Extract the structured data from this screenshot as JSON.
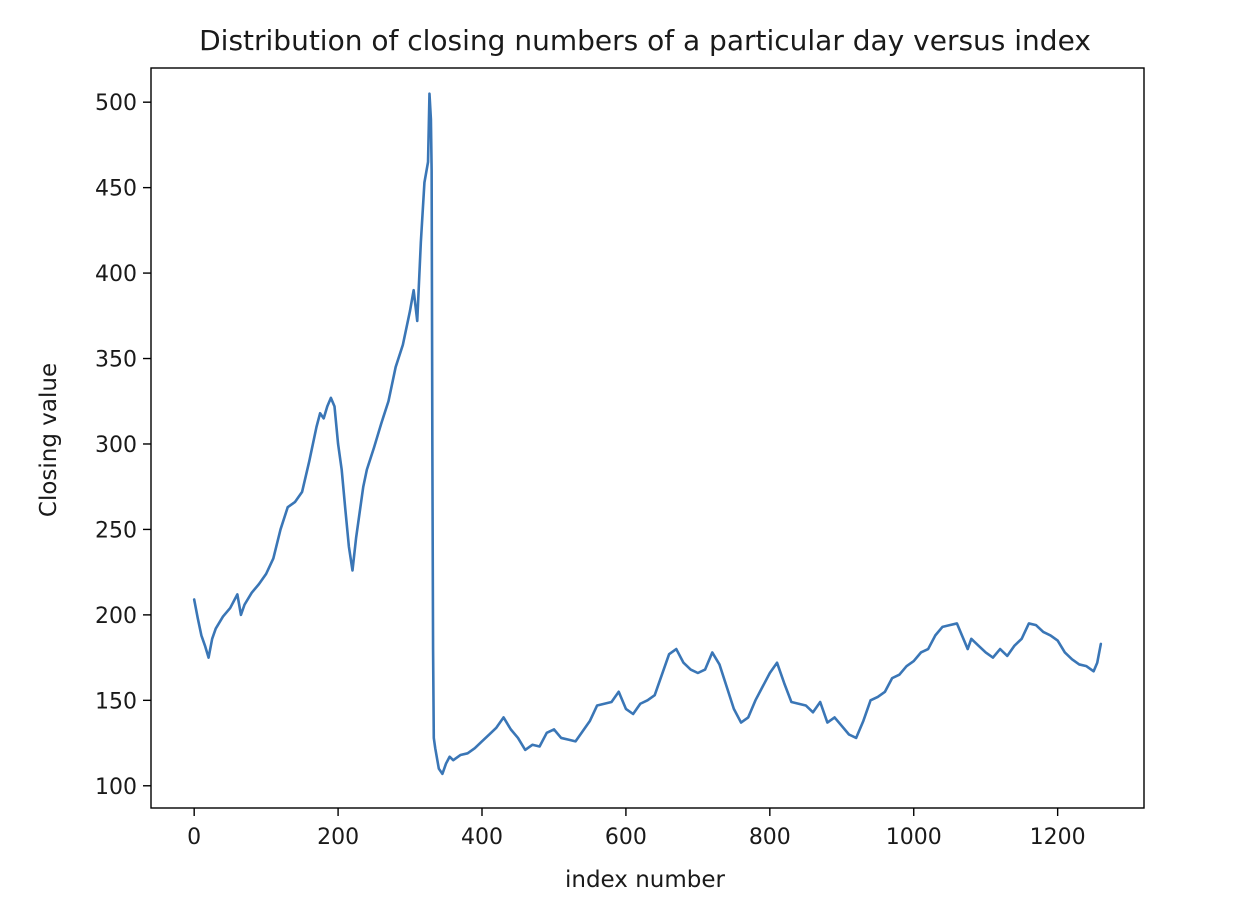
{
  "chart_data": {
    "type": "line",
    "title": "Distribution of closing numbers of a particular day versus index",
    "xlabel": "index number",
    "ylabel": "Closing value",
    "xlim": [
      -60,
      1320
    ],
    "ylim": [
      87,
      520
    ],
    "xticks": [
      0,
      200,
      400,
      600,
      800,
      1000,
      1200
    ],
    "yticks": [
      100,
      150,
      200,
      250,
      300,
      350,
      400,
      450,
      500
    ],
    "grid": false,
    "legend": "none",
    "series_color": "#3a76b6",
    "series": [
      {
        "x": [
          0,
          5,
          10,
          15,
          20,
          25,
          30,
          40,
          50,
          60,
          65,
          70,
          80,
          90,
          100,
          110,
          120,
          130,
          140,
          150,
          160,
          170,
          175,
          180,
          185,
          190,
          195,
          200,
          205,
          210,
          215,
          220,
          225,
          230,
          235,
          240,
          250,
          260,
          270,
          280,
          290,
          300,
          305,
          310,
          315,
          320,
          325,
          327,
          329,
          330,
          331,
          332,
          333,
          335,
          340,
          345,
          350,
          355,
          360,
          370,
          380,
          390,
          400,
          410,
          420,
          430,
          440,
          450,
          460,
          470,
          480,
          490,
          500,
          510,
          520,
          530,
          540,
          550,
          560,
          570,
          580,
          590,
          600,
          610,
          620,
          630,
          640,
          650,
          660,
          670,
          680,
          690,
          700,
          710,
          720,
          730,
          740,
          750,
          760,
          770,
          780,
          790,
          800,
          810,
          820,
          830,
          840,
          850,
          860,
          870,
          880,
          890,
          900,
          910,
          920,
          930,
          940,
          950,
          960,
          970,
          980,
          990,
          1000,
          1010,
          1020,
          1030,
          1040,
          1050,
          1060,
          1070,
          1075,
          1080,
          1090,
          1100,
          1110,
          1120,
          1130,
          1140,
          1150,
          1160,
          1170,
          1180,
          1190,
          1200,
          1210,
          1220,
          1230,
          1240,
          1250,
          1255,
          1260
        ],
        "y": [
          209,
          198,
          188,
          182,
          175,
          186,
          192,
          199,
          204,
          212,
          200,
          206,
          213,
          218,
          224,
          233,
          250,
          263,
          266,
          272,
          290,
          310,
          318,
          315,
          322,
          327,
          322,
          300,
          285,
          262,
          240,
          226,
          245,
          260,
          275,
          285,
          298,
          312,
          325,
          345,
          358,
          378,
          390,
          372,
          418,
          453,
          465,
          505,
          490,
          460,
          300,
          180,
          128,
          122,
          110,
          107,
          113,
          117,
          115,
          118,
          119,
          122,
          126,
          130,
          134,
          140,
          133,
          128,
          121,
          124,
          123,
          131,
          133,
          128,
          127,
          126,
          132,
          138,
          147,
          148,
          149,
          155,
          145,
          142,
          148,
          150,
          153,
          165,
          177,
          180,
          172,
          168,
          166,
          168,
          178,
          171,
          158,
          145,
          137,
          140,
          150,
          158,
          166,
          172,
          160,
          149,
          148,
          147,
          143,
          149,
          137,
          140,
          135,
          130,
          128,
          138,
          150,
          152,
          155,
          163,
          165,
          170,
          173,
          178,
          180,
          188,
          193,
          194,
          195,
          185,
          180,
          186,
          182,
          178,
          175,
          180,
          176,
          182,
          186,
          195,
          194,
          190,
          188,
          185,
          178,
          174,
          171,
          170,
          167,
          172,
          183
        ]
      }
    ]
  }
}
